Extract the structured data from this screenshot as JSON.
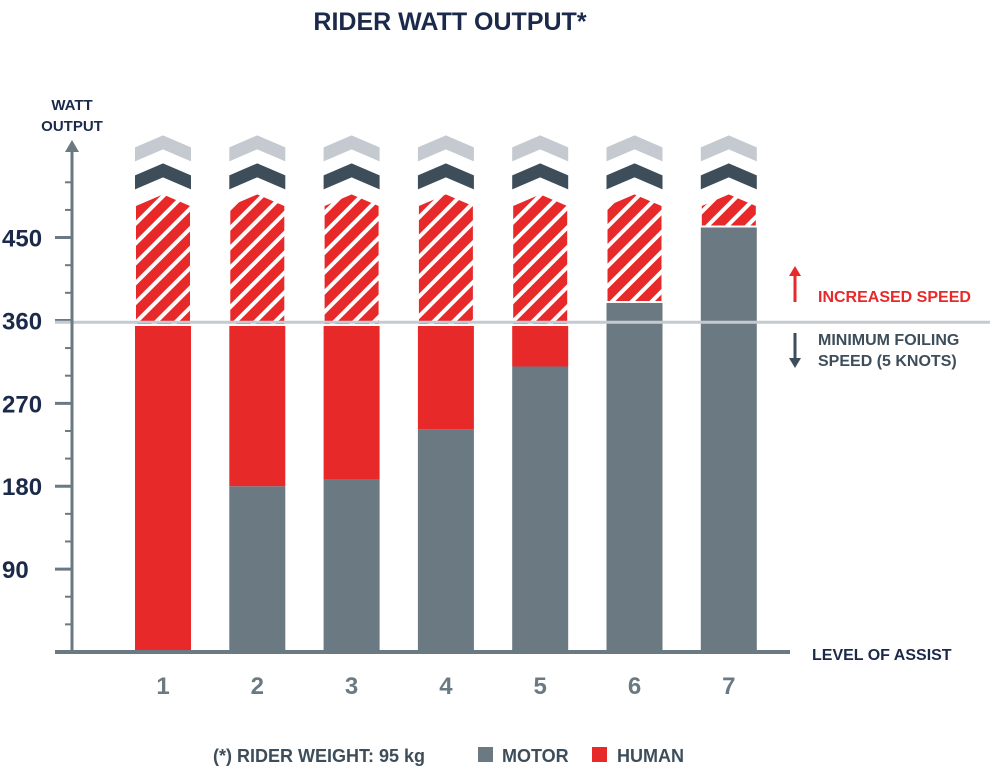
{
  "chart_data": {
    "type": "bar",
    "stacked": true,
    "title": "RIDER WATT OUTPUT*",
    "ylabel_line1": "WATT",
    "ylabel_line2": "OUTPUT",
    "xlabel": "LEVEL OF ASSIST",
    "categories": [
      "1",
      "2",
      "3",
      "4",
      "5",
      "6",
      "7"
    ],
    "yticks": [
      90,
      180,
      270,
      360,
      450
    ],
    "ylim": [
      0,
      560
    ],
    "series": [
      {
        "name": "MOTOR",
        "color": "#6b7982",
        "values": [
          0,
          180,
          187,
          242,
          310,
          380,
          462
        ]
      },
      {
        "name": "HUMAN",
        "color": "#e8292a",
        "values": [
          355,
          175,
          168,
          113,
          45,
          0,
          0
        ]
      }
    ],
    "hatched_tops_to": 485,
    "chevron_colors": [
      "#3d4e5a",
      "#c4cacf"
    ],
    "threshold": {
      "value": 358
    },
    "annotations": {
      "increased_speed": "INCREASED SPEED",
      "min_foiling_line1": "MINIMUM FOILING",
      "min_foiling_line2": "SPEED (5 KNOTS)"
    },
    "footer_note": "(*) RIDER WEIGHT: 95 kg",
    "legend": {
      "motor_label": "MOTOR",
      "human_label": "HUMAN"
    }
  }
}
